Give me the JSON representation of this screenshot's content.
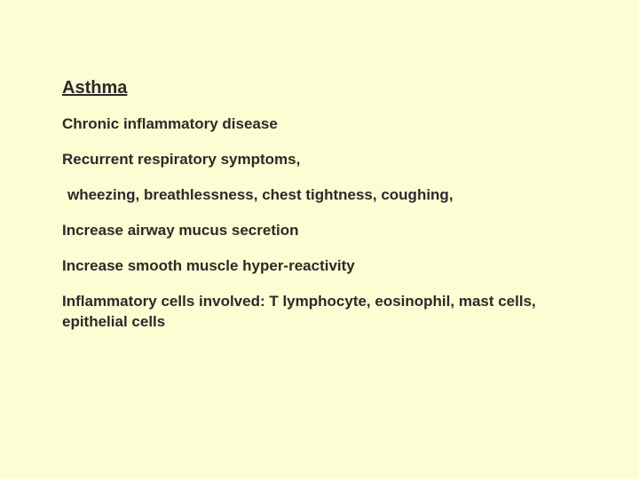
{
  "background_color": "#fdfdd3",
  "text_color": "#2a2a2a",
  "title_fontsize": 20,
  "body_fontsize": 17,
  "slide": {
    "title": "Asthma",
    "lines": [
      "Chronic inflammatory disease",
      "Recurrent respiratory symptoms,",
      " wheezing, breathlessness, chest tightness, coughing,",
      "Increase airway mucus secretion",
      "Increase smooth muscle hyper-reactivity",
      "Inflammatory cells involved: T lymphocyte, eosinophil, mast cells, epithelial cells"
    ]
  }
}
